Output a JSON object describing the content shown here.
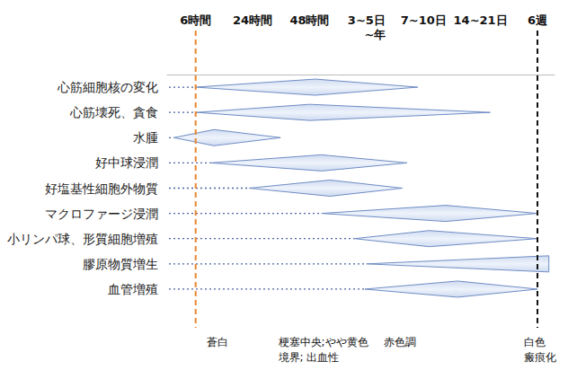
{
  "chart_data": {
    "type": "timeline",
    "xlim": [
      -0.5,
      6.3
    ],
    "xticks": [
      {
        "value": 0,
        "label": "6時間"
      },
      {
        "value": 1,
        "label": "24時間"
      },
      {
        "value": 2,
        "label": "48時間"
      },
      {
        "value": 3,
        "label": "3~5日"
      },
      {
        "value": 4,
        "label": "7~10日"
      },
      {
        "value": 5,
        "label": "14~21日"
      },
      {
        "value": 6,
        "label": "6週"
      }
    ],
    "grid": false,
    "color": "#cfdbf1",
    "rows": [
      {
        "label": "心筋細胞核の変化",
        "start": 0,
        "peak": 2.1,
        "end": 3.9
      },
      {
        "label": "心筋壊死、貪食",
        "start": 0.02,
        "peak": 2.0,
        "end": 5.17
      },
      {
        "label": "水腫",
        "start": -0.38,
        "peak": 0.32,
        "end": 1.49
      },
      {
        "label": "好中球浸潤",
        "start": 0.26,
        "peak": 2.21,
        "end": 3.71
      },
      {
        "label": "好塩基性細胞外物質",
        "start": 0.94,
        "peak": 2.36,
        "end": 3.63
      },
      {
        "label": "マクロファージ浸潤",
        "start": 2.21,
        "peak": 4.39,
        "end": 6.0
      },
      {
        "label": "小リンパ球、形質細胞増殖",
        "start": 2.79,
        "peak": 4.1,
        "end": 6.0
      },
      {
        "label": "膠原物質増生",
        "start": 3.0,
        "peak": 6.2,
        "end": 6.2
      },
      {
        "label": "血管増殖",
        "start": 2.97,
        "peak": 4.6,
        "end": 6.0
      }
    ],
    "vertical_lines": [
      {
        "x": 0,
        "color": "#e8862e",
        "line_style": "dashed"
      },
      {
        "x": 6,
        "color": "#111111",
        "line_style": "dashed"
      }
    ],
    "top_annotations": [
      {
        "x": 3.15,
        "lines": [
          "~年"
        ]
      }
    ],
    "bottom_annotations": [
      {
        "x": 0.19,
        "lines": [
          "蒼白"
        ]
      },
      {
        "x": 1.45,
        "lines": [
          "梗塞中央;やや黄色",
          "境界; 出血性"
        ]
      },
      {
        "x": 3.3,
        "lines": [
          "赤色調"
        ]
      },
      {
        "x": 5.77,
        "lines": [
          "白色",
          "瘢痕化"
        ]
      }
    ]
  }
}
